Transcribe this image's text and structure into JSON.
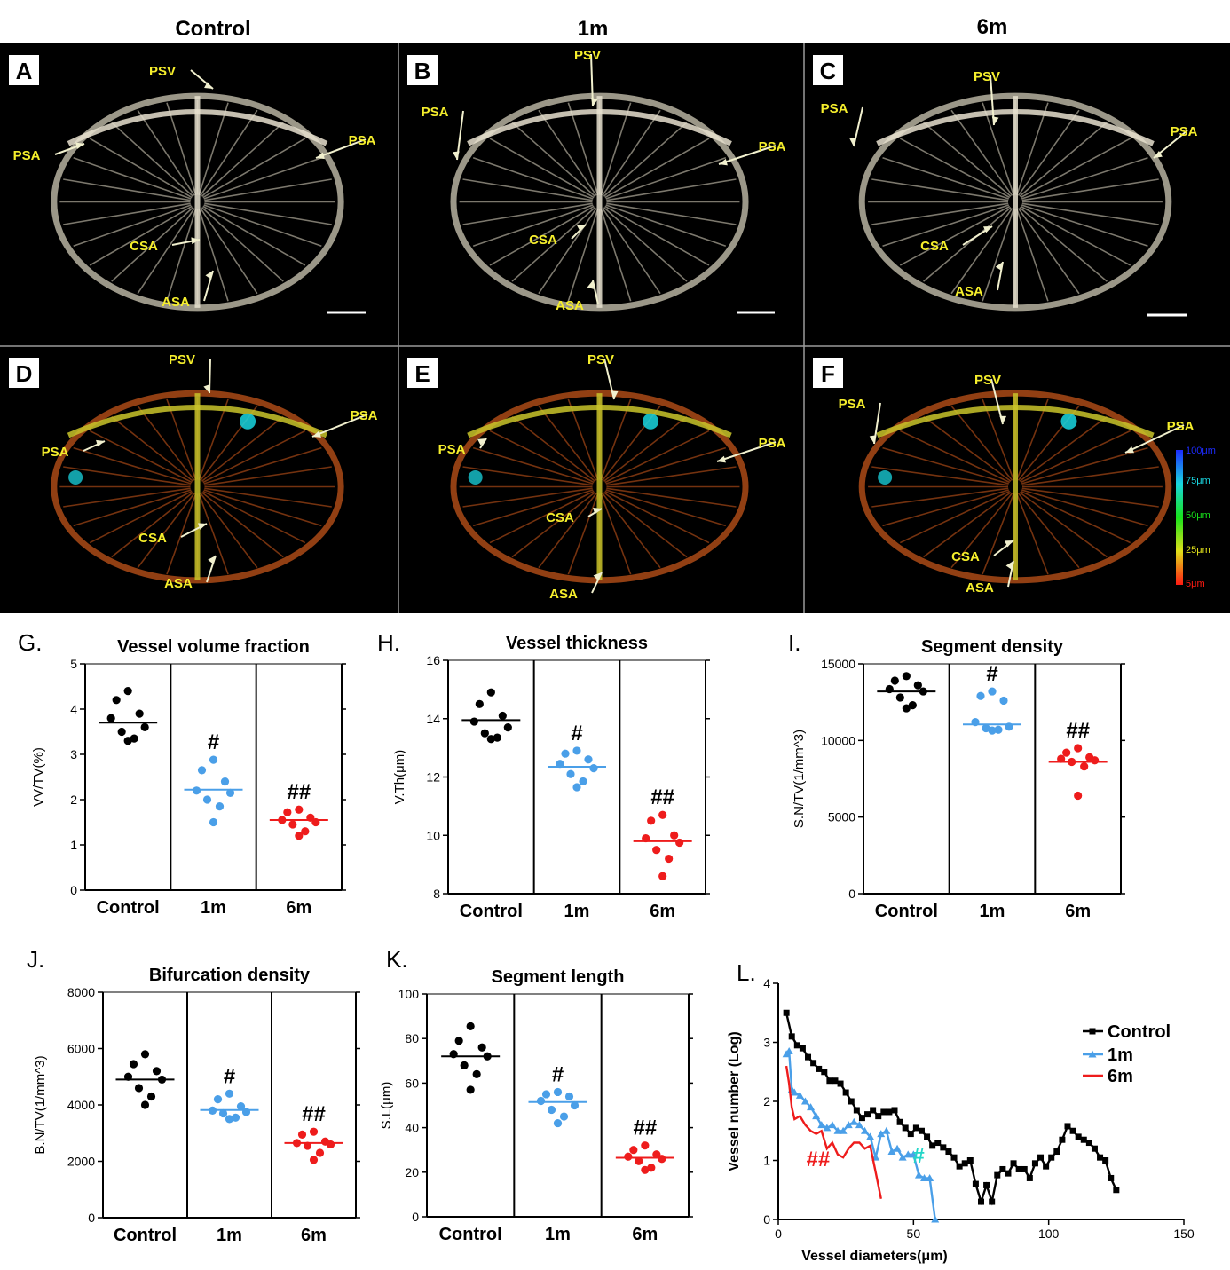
{
  "columns": [
    "Control",
    "1m",
    "6m"
  ],
  "image_panels": [
    {
      "letter": "A",
      "labels": [
        "PSV",
        "PSA",
        "PSA",
        "CSA",
        "ASA"
      ]
    },
    {
      "letter": "B",
      "labels": [
        "PSV",
        "PSA",
        "PSA",
        "CSA",
        "ASA"
      ]
    },
    {
      "letter": "C",
      "labels": [
        "PSV",
        "PSA",
        "PSA",
        "CSA",
        "ASA"
      ]
    },
    {
      "letter": "D",
      "labels": [
        "PSV",
        "PSA",
        "PSA",
        "CSA",
        "ASA"
      ]
    },
    {
      "letter": "E",
      "labels": [
        "PSV",
        "PSA",
        "PSA",
        "CSA",
        "ASA"
      ]
    },
    {
      "letter": "F",
      "labels": [
        "PSV",
        "PSA",
        "PSA",
        "CSA",
        "ASA"
      ]
    }
  ],
  "colorbar": {
    "labels": [
      "100μm",
      "75μm",
      "50μm",
      "25μm",
      "5μm"
    ],
    "colors": [
      "#1d2bff",
      "#19d6e0",
      "#17e21b",
      "#e0e01a",
      "#ff1a12"
    ]
  },
  "colors": {
    "Control": "#000000",
    "1m": "#4a9fe8",
    "6m": "#ee1c1c",
    "label": "#f5ee2c",
    "sig_L_6m": "#ee1c1c",
    "sig_L_1m": "#22d6c8"
  },
  "chart_data": [
    {
      "panel": "G.",
      "type": "scatter",
      "title": "Vessel volume fraction",
      "ylabel": "VV/TV(%)",
      "categories": [
        "Control",
        "1m",
        "6m"
      ],
      "ylim": [
        0,
        5
      ],
      "yticks": [
        0,
        1,
        2,
        3,
        4,
        5
      ],
      "series": [
        {
          "group": "Control",
          "points": [
            4.4,
            4.2,
            3.9,
            3.8,
            3.6,
            3.5,
            3.35,
            3.3
          ],
          "mean": 3.7,
          "sig": ""
        },
        {
          "group": "1m",
          "points": [
            2.88,
            2.65,
            2.4,
            2.2,
            2.15,
            2.0,
            1.85,
            1.5
          ],
          "mean": 2.22,
          "sig": "#"
        },
        {
          "group": "6m",
          "points": [
            1.78,
            1.72,
            1.6,
            1.55,
            1.5,
            1.45,
            1.3,
            1.2
          ],
          "mean": 1.55,
          "sig": "##"
        }
      ]
    },
    {
      "panel": "H.",
      "type": "scatter",
      "title": "Vessel thickness",
      "ylabel": "V.Th(μm)",
      "categories": [
        "Control",
        "1m",
        "6m"
      ],
      "ylim": [
        8,
        16
      ],
      "yticks": [
        8,
        10,
        12,
        14,
        16
      ],
      "series": [
        {
          "group": "Control",
          "points": [
            14.9,
            14.5,
            14.1,
            13.9,
            13.7,
            13.5,
            13.35,
            13.3
          ],
          "mean": 13.95,
          "sig": ""
        },
        {
          "group": "1m",
          "points": [
            12.9,
            12.8,
            12.6,
            12.45,
            12.3,
            12.1,
            11.85,
            11.65
          ],
          "mean": 12.35,
          "sig": "#"
        },
        {
          "group": "6m",
          "points": [
            10.7,
            10.5,
            10.0,
            9.9,
            9.75,
            9.5,
            9.2,
            8.6
          ],
          "mean": 9.8,
          "sig": "##"
        }
      ]
    },
    {
      "panel": "I.",
      "type": "scatter",
      "title": "Segment density",
      "ylabel": "S.N/TV(1/mm^3)",
      "categories": [
        "Control",
        "1m",
        "6m"
      ],
      "ylim": [
        0,
        15000
      ],
      "yticks": [
        0,
        5000,
        10000,
        15000
      ],
      "series": [
        {
          "group": "Control",
          "points": [
            14200,
            13900,
            13600,
            13350,
            13200,
            12800,
            12300,
            12100
          ],
          "mean": 13200,
          "sig": ""
        },
        {
          "group": "1m",
          "points": [
            13200,
            12900,
            12600,
            11200,
            10900,
            10800,
            10700,
            10650
          ],
          "mean": 11050,
          "sig": "#"
        },
        {
          "group": "6m",
          "points": [
            9500,
            9200,
            8900,
            8800,
            8700,
            8600,
            8300,
            6400
          ],
          "mean": 8600,
          "sig": "##"
        }
      ]
    },
    {
      "panel": "J.",
      "type": "scatter",
      "title": "Bifurcation density",
      "ylabel": "B.N/TV(1/mm^3)",
      "categories": [
        "Control",
        "1m",
        "6m"
      ],
      "ylim": [
        0,
        8000
      ],
      "yticks": [
        0,
        2000,
        4000,
        6000,
        8000
      ],
      "series": [
        {
          "group": "Control",
          "points": [
            5800,
            5450,
            5200,
            5000,
            4900,
            4600,
            4300,
            4000
          ],
          "mean": 4900,
          "sig": ""
        },
        {
          "group": "1m",
          "points": [
            4400,
            4200,
            3950,
            3800,
            3750,
            3700,
            3550,
            3500
          ],
          "mean": 3820,
          "sig": "#"
        },
        {
          "group": "6m",
          "points": [
            3050,
            2950,
            2700,
            2650,
            2600,
            2550,
            2300,
            2050
          ],
          "mean": 2650,
          "sig": "##"
        }
      ]
    },
    {
      "panel": "K.",
      "type": "scatter",
      "title": "Segment length",
      "ylabel": "S.L(μm)",
      "categories": [
        "Control",
        "1m",
        "6m"
      ],
      "ylim": [
        0,
        100
      ],
      "yticks": [
        0,
        20,
        40,
        60,
        80,
        100
      ],
      "series": [
        {
          "group": "Control",
          "points": [
            85.5,
            79,
            76,
            73,
            72,
            68,
            64,
            57
          ],
          "mean": 72,
          "sig": ""
        },
        {
          "group": "1m",
          "points": [
            56,
            55,
            54,
            52,
            50,
            48,
            45,
            42
          ],
          "mean": 51.5,
          "sig": "#"
        },
        {
          "group": "6m",
          "points": [
            32,
            30,
            28,
            27,
            26,
            25,
            22,
            21
          ],
          "mean": 26.5,
          "sig": "##"
        }
      ]
    },
    {
      "panel": "L.",
      "type": "line",
      "title": "",
      "xlabel": "Vessel diameters(μm)",
      "ylabel": "Vessel number (Log)",
      "xlim": [
        0,
        150
      ],
      "ylim": [
        0,
        4
      ],
      "xticks": [
        0,
        50,
        100,
        150
      ],
      "yticks": [
        0,
        1,
        2,
        3,
        4
      ],
      "legend_position": "top-right",
      "series": [
        {
          "name": "Control",
          "marker": "square",
          "sig": "",
          "x": [
            3,
            5,
            7,
            9,
            11,
            13,
            15,
            17,
            19,
            21,
            23,
            25,
            27,
            29,
            31,
            33,
            35,
            37,
            39,
            41,
            43,
            45,
            47,
            49,
            51,
            53,
            55,
            57,
            59,
            61,
            63,
            65,
            67,
            69,
            71,
            73,
            75,
            77,
            79,
            81,
            83,
            85,
            87,
            89,
            91,
            93,
            95,
            97,
            99,
            101,
            103,
            105,
            107,
            109,
            111,
            113,
            115,
            117,
            119,
            121,
            123,
            125
          ],
          "y": [
            3.5,
            3.1,
            2.95,
            2.9,
            2.75,
            2.65,
            2.55,
            2.5,
            2.35,
            2.35,
            2.3,
            2.15,
            2.0,
            1.85,
            1.72,
            1.78,
            1.85,
            1.75,
            1.82,
            1.82,
            1.85,
            1.65,
            1.55,
            1.45,
            1.55,
            1.5,
            1.4,
            1.25,
            1.3,
            1.22,
            1.15,
            1.05,
            0.9,
            0.95,
            1.0,
            0.6,
            0.3,
            0.58,
            0.3,
            0.75,
            0.85,
            0.78,
            0.95,
            0.85,
            0.85,
            0.7,
            0.95,
            1.05,
            0.9,
            1.05,
            1.15,
            1.35,
            1.58,
            1.5,
            1.4,
            1.35,
            1.3,
            1.2,
            1.05,
            1.0,
            0.7,
            0.5
          ]
        },
        {
          "name": "1m",
          "marker": "triangle",
          "sig": "#",
          "x": [
            3,
            4,
            5,
            6,
            8,
            10,
            12,
            14,
            16,
            18,
            20,
            22,
            24,
            26,
            28,
            30,
            32,
            34,
            36,
            38,
            40,
            42,
            44,
            46,
            48,
            50,
            52,
            54,
            56,
            58
          ],
          "y": [
            2.8,
            2.85,
            2.2,
            2.15,
            2.1,
            2.0,
            1.9,
            1.75,
            1.6,
            1.55,
            1.6,
            1.5,
            1.5,
            1.6,
            1.65,
            1.6,
            1.5,
            1.4,
            1.05,
            1.45,
            1.5,
            1.15,
            1.2,
            1.05,
            1.1,
            1.1,
            0.75,
            0.7,
            0.7,
            0.0
          ]
        },
        {
          "name": "6m",
          "marker": "none",
          "sig": "##",
          "x": [
            3,
            4,
            5,
            6,
            8,
            10,
            12,
            14,
            16,
            18,
            20,
            22,
            24,
            26,
            28,
            30,
            32,
            34,
            36,
            38
          ],
          "y": [
            2.6,
            2.3,
            1.9,
            1.7,
            1.75,
            1.6,
            1.5,
            1.45,
            1.5,
            1.2,
            1.3,
            1.1,
            1.05,
            1.2,
            1.3,
            1.3,
            1.2,
            1.25,
            0.8,
            0.35
          ]
        }
      ]
    }
  ]
}
